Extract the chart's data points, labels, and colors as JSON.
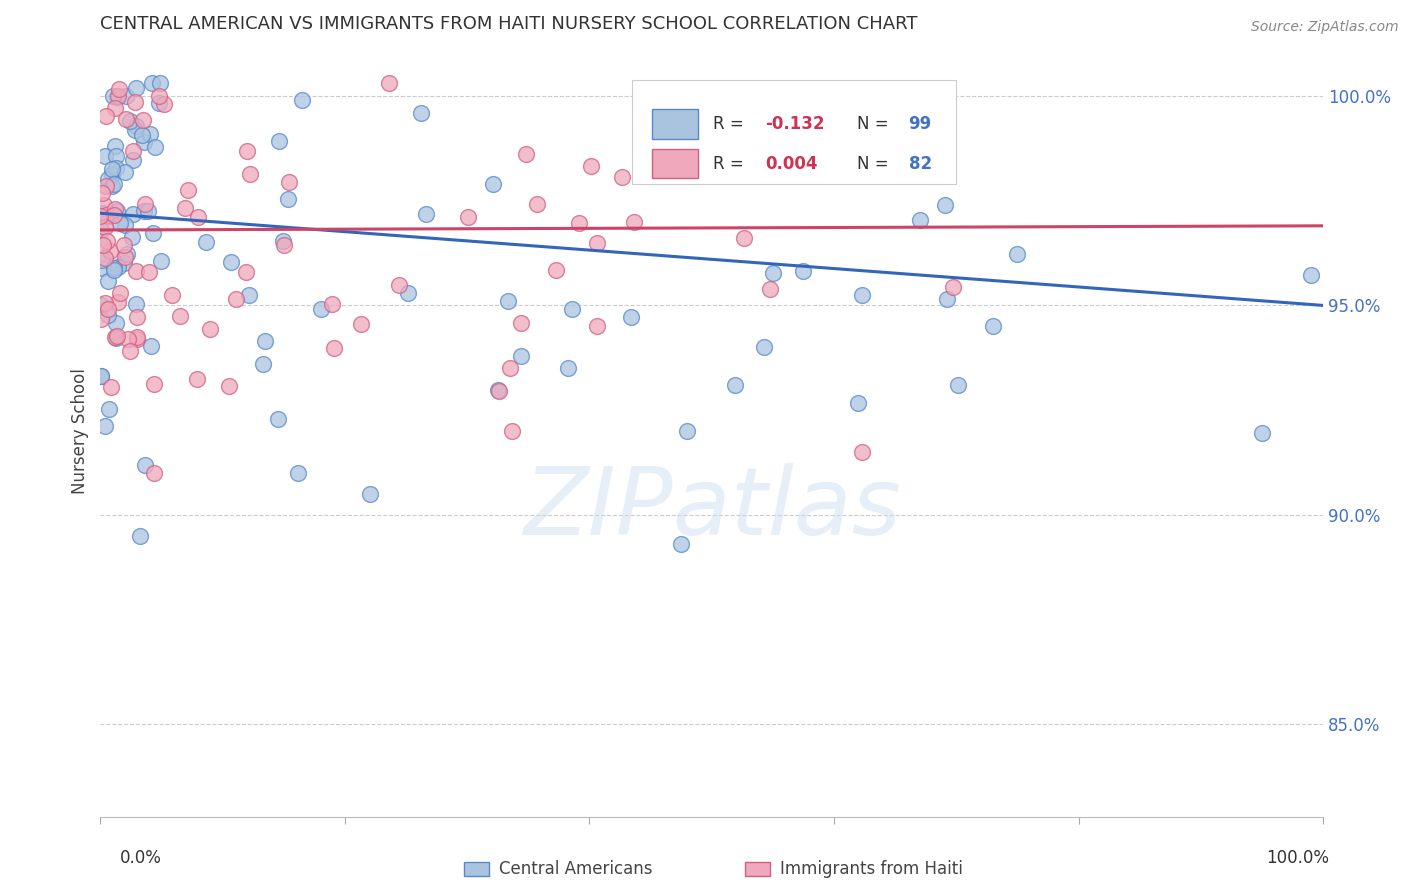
{
  "title": "CENTRAL AMERICAN VS IMMIGRANTS FROM HAITI NURSERY SCHOOL CORRELATION CHART",
  "source": "Source: ZipAtlas.com",
  "ylabel": "Nursery School",
  "watermark": "ZIPatlas",
  "blue_color": "#aac4e0",
  "pink_color": "#f0a8bc",
  "blue_edge_color": "#5588cc",
  "pink_edge_color": "#d06080",
  "blue_line_color": "#3366bb",
  "pink_line_color": "#cc4466",
  "ytick_labels": [
    "85.0%",
    "90.0%",
    "95.0%",
    "100.0%"
  ],
  "ytick_values": [
    0.85,
    0.9,
    0.95,
    1.0
  ],
  "xlim": [
    0.0,
    1.0
  ],
  "ylim": [
    0.828,
    1.012
  ],
  "background_color": "#ffffff",
  "grid_color": "#cccccc",
  "legend_r_blue": "-0.132",
  "legend_n_blue": "99",
  "legend_r_pink": "0.004",
  "legend_n_pink": "82",
  "blue_line_x": [
    0.0,
    1.0
  ],
  "blue_line_y": [
    0.972,
    0.95
  ],
  "pink_line_x": [
    0.0,
    1.0
  ],
  "pink_line_y": [
    0.968,
    0.969
  ]
}
